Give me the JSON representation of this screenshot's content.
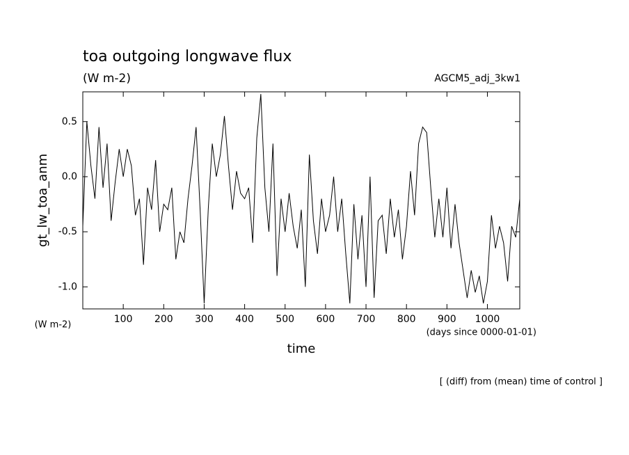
{
  "chart_data": {
    "type": "line",
    "title": "toa outgoing longwave flux",
    "subtitle": "(W m-2)",
    "run_label": "AGCM5_adj_3kw1",
    "y_label": "gt_lw_toa_anm",
    "y_unit": "(W m-2)",
    "x_unit": "(days since 0000-01-01)",
    "x_label": "time",
    "note": "[ (diff) from (mean) time of control ]",
    "xlim": [
      0,
      1080
    ],
    "ylim": [
      -1.2,
      0.77
    ],
    "xticks": [
      100,
      200,
      300,
      400,
      500,
      600,
      700,
      800,
      900,
      1000
    ],
    "yticks": [
      0.5,
      {
        "value": 0,
        "label": "0.0"
      },
      -0.5,
      {
        "value": -1,
        "label": "-1.0"
      }
    ],
    "x": [
      0,
      10,
      20,
      30,
      40,
      50,
      60,
      70,
      80,
      90,
      100,
      110,
      120,
      130,
      140,
      150,
      160,
      170,
      180,
      190,
      200,
      210,
      220,
      230,
      240,
      250,
      260,
      270,
      280,
      290,
      300,
      310,
      320,
      330,
      340,
      350,
      360,
      370,
      380,
      390,
      400,
      410,
      420,
      430,
      440,
      450,
      460,
      470,
      480,
      490,
      500,
      510,
      520,
      530,
      540,
      550,
      560,
      570,
      580,
      590,
      600,
      610,
      620,
      630,
      640,
      650,
      660,
      670,
      680,
      690,
      700,
      710,
      720,
      730,
      740,
      750,
      760,
      770,
      780,
      790,
      800,
      810,
      820,
      830,
      840,
      850,
      860,
      870,
      880,
      890,
      900,
      910,
      920,
      930,
      940,
      950,
      960,
      970,
      980,
      990,
      1000,
      1010,
      1020,
      1030,
      1040,
      1050,
      1060,
      1070,
      1080
    ],
    "series": [
      {
        "color": "#000000",
        "values": [
          -0.45,
          0.5,
          0.1,
          -0.2,
          0.45,
          -0.1,
          0.3,
          -0.4,
          -0.05,
          0.25,
          0.0,
          0.25,
          0.1,
          -0.35,
          -0.2,
          -0.8,
          -0.1,
          -0.3,
          0.15,
          -0.5,
          -0.25,
          -0.3,
          -0.1,
          -0.75,
          -0.5,
          -0.6,
          -0.2,
          0.1,
          0.45,
          -0.3,
          -1.15,
          -0.3,
          0.3,
          0.0,
          0.2,
          0.55,
          0.1,
          -0.3,
          0.05,
          -0.15,
          -0.2,
          -0.1,
          -0.6,
          0.35,
          0.75,
          -0.1,
          -0.5,
          0.3,
          -0.9,
          -0.2,
          -0.5,
          -0.15,
          -0.45,
          -0.65,
          -0.3,
          -1.0,
          0.2,
          -0.4,
          -0.7,
          -0.2,
          -0.5,
          -0.35,
          0.0,
          -0.5,
          -0.2,
          -0.7,
          -1.15,
          -0.25,
          -0.75,
          -0.35,
          -1.0,
          0.0,
          -1.1,
          -0.4,
          -0.35,
          -0.7,
          -0.2,
          -0.55,
          -0.3,
          -0.75,
          -0.45,
          0.05,
          -0.35,
          0.3,
          0.45,
          0.4,
          -0.1,
          -0.55,
          -0.2,
          -0.55,
          -0.1,
          -0.65,
          -0.25,
          -0.6,
          -0.85,
          -1.1,
          -0.85,
          -1.05,
          -0.9,
          -1.15,
          -0.95,
          -0.35,
          -0.65,
          -0.45,
          -0.6,
          -0.95,
          -0.45,
          -0.55,
          -0.2
        ]
      }
    ]
  }
}
